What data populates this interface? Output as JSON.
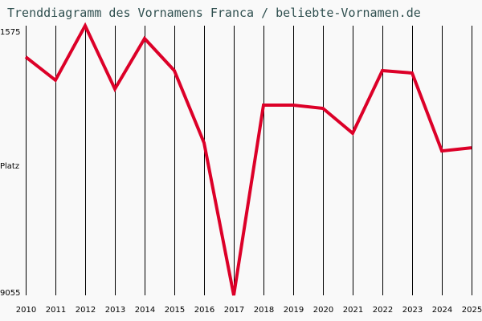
{
  "title": "Trenddiagramm des Vornamens Franca / beliebte-Vornamen.de",
  "y_axis": {
    "top_label": "1575",
    "middle_label": "Platz",
    "bottom_label": "9055"
  },
  "colors": {
    "line": "#dc0028",
    "grid": "#000000",
    "title": "#2f4f4f",
    "background": "#f9f9f9"
  },
  "chart_data": {
    "type": "line",
    "title": "Trenddiagramm des Vornamens Franca / beliebte-Vornamen.de",
    "xlabel": "",
    "ylabel": "Platz",
    "ylim": [
      9055,
      1575
    ],
    "y_inverted": true,
    "grid": "vertical",
    "categories": [
      "2010",
      "2011",
      "2012",
      "2013",
      "2014",
      "2015",
      "2016",
      "2017",
      "2018",
      "2019",
      "2020",
      "2021",
      "2022",
      "2023",
      "2024",
      "2025"
    ],
    "series": [
      {
        "name": "Franca",
        "values": [
          2441,
          3087,
          1575,
          3332,
          1931,
          2822,
          4826,
          9055,
          3778,
          3778,
          3867,
          4558,
          2822,
          2889,
          5049,
          4960
        ]
      }
    ]
  }
}
